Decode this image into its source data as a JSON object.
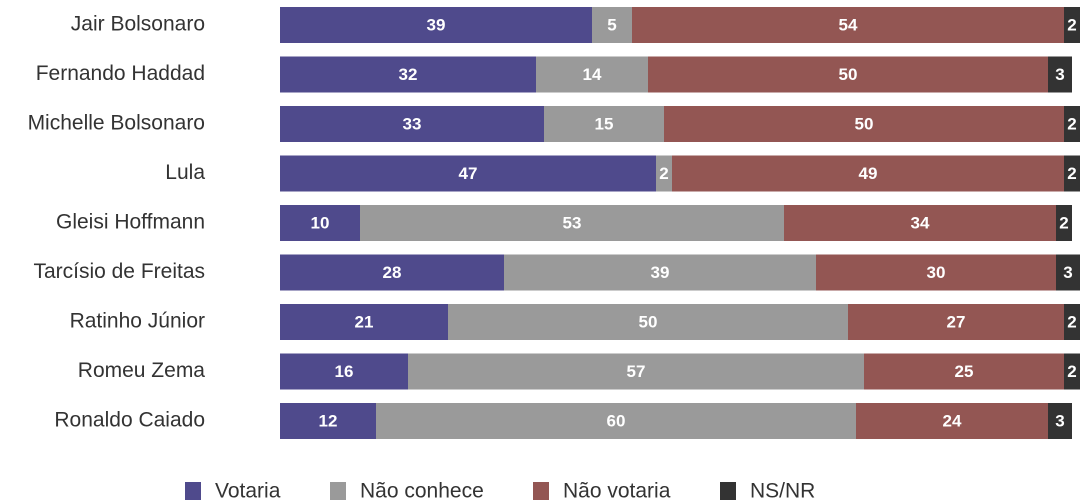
{
  "chart_data": {
    "type": "stacked-bar-horizontal",
    "categories": [
      "Jair Bolsonaro",
      "Fernando Haddad",
      "Michelle Bolsonaro",
      "Lula",
      "Gleisi Hoffmann",
      "Tarcísio de Freitas",
      "Ratinho Júnior",
      "Romeu Zema",
      "Ronaldo Caiado"
    ],
    "series": [
      {
        "name": "Votaria",
        "color": "#4f4a8c",
        "values": [
          39,
          32,
          33,
          47,
          10,
          28,
          21,
          16,
          12
        ]
      },
      {
        "name": "Não conhece",
        "color": "#9a9a9a",
        "values": [
          5,
          14,
          15,
          2,
          53,
          39,
          50,
          57,
          60
        ]
      },
      {
        "name": "Não votaria",
        "color": "#935653",
        "values": [
          54,
          50,
          50,
          49,
          34,
          30,
          27,
          25,
          24
        ]
      },
      {
        "name": "NS/NR",
        "color": "#333333",
        "values": [
          2,
          3,
          2,
          2,
          2,
          3,
          2,
          2,
          3
        ]
      }
    ],
    "legend": "bottom"
  }
}
